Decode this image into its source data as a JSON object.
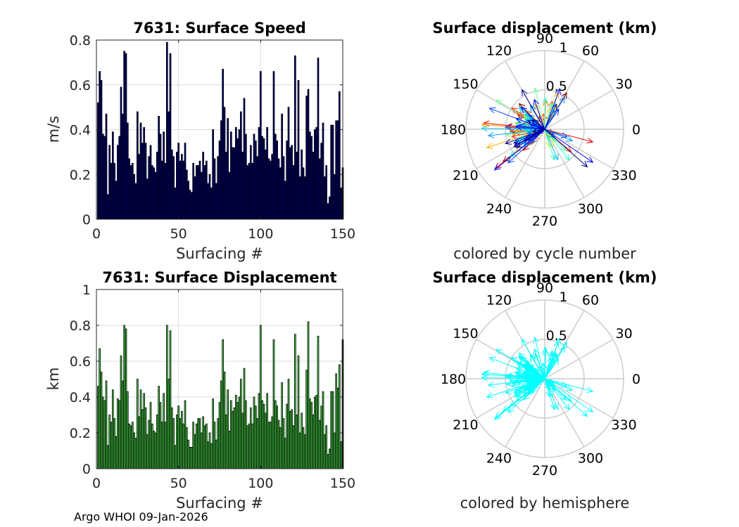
{
  "footer": "Argo WHOI 09-Jan-2026",
  "colors": {
    "speed_bar": "#00007f",
    "disp_bar": "#4cdb4c",
    "hemisphere_arrow": "#00ffff",
    "grid": "#dcdcdc",
    "polar_grid": "#cccccc"
  },
  "chart_data": [
    {
      "id": "speed",
      "type": "bar",
      "title": "7631: Surface Speed",
      "xlabel": "Surfacing #",
      "ylabel": "m/s",
      "xlim": [
        0,
        150
      ],
      "ylim": [
        0,
        0.8
      ],
      "xticks": [
        0,
        50,
        100,
        150
      ],
      "yticks": [
        0,
        0.2,
        0.4,
        0.6,
        0.8
      ],
      "ytick_labels": [
        "0",
        "0.2",
        "0.4",
        "0.6",
        "0.8"
      ],
      "values": [
        0.52,
        0.66,
        0.62,
        0.38,
        0.37,
        0.47,
        0.11,
        0.33,
        0.25,
        0.39,
        0.25,
        0.17,
        0.33,
        0.37,
        0.59,
        0.47,
        0.75,
        0.74,
        0.43,
        0.27,
        0.24,
        0.25,
        0.2,
        0.16,
        0.48,
        0.29,
        0.43,
        0.34,
        0.41,
        0.34,
        0.18,
        0.28,
        0.33,
        0.24,
        0.23,
        0.21,
        0.3,
        0.46,
        0.38,
        0.26,
        0.39,
        0.25,
        0.79,
        0.48,
        0.74,
        0.31,
        0.28,
        0.14,
        0.3,
        0.34,
        0.26,
        0.29,
        0.26,
        0.34,
        0.22,
        0.17,
        0.13,
        0.12,
        0.25,
        0.19,
        0.24,
        0.24,
        0.26,
        0.21,
        0.3,
        0.24,
        0.26,
        0.16,
        0.2,
        0.14,
        0.4,
        0.27,
        0.16,
        0.28,
        0.35,
        0.44,
        0.67,
        0.5,
        0.3,
        0.45,
        0.21,
        0.39,
        0.32,
        0.32,
        0.41,
        0.36,
        0.4,
        0.48,
        0.3,
        0.54,
        0.38,
        0.24,
        0.25,
        0.33,
        0.25,
        0.38,
        0.35,
        0.28,
        0.41,
        0.66,
        0.37,
        0.36,
        0.31,
        0.41,
        0.27,
        0.26,
        0.29,
        0.66,
        0.38,
        0.35,
        0.27,
        0.23,
        0.47,
        0.28,
        0.17,
        0.35,
        0.5,
        0.32,
        0.33,
        0.24,
        0.73,
        0.3,
        0.62,
        0.19,
        0.31,
        0.23,
        0.19,
        0.55,
        0.58,
        0.39,
        0.37,
        0.3,
        0.4,
        0.41,
        0.72,
        0.27,
        0.34,
        0.43,
        0.19,
        0.24,
        0.07,
        0.1,
        0.42,
        0.42,
        0.2,
        0.44,
        0.44,
        0.57,
        0.14,
        0.23
      ]
    },
    {
      "id": "displacement",
      "type": "bar",
      "title": "7631: Surface Displacement",
      "xlabel": "Surfacing #",
      "ylabel": "km",
      "xlim": [
        0,
        150
      ],
      "ylim": [
        0,
        1
      ],
      "xticks": [
        0,
        50,
        100,
        150
      ],
      "yticks": [
        0,
        0.2,
        0.4,
        0.6,
        0.8,
        1
      ],
      "ytick_labels": [
        "0",
        "0.2",
        "0.4",
        "0.6",
        "0.8",
        "1"
      ],
      "values": [
        0.46,
        0.67,
        0.54,
        0.4,
        0.38,
        0.49,
        0.13,
        0.3,
        0.26,
        0.44,
        0.28,
        0.18,
        0.39,
        0.38,
        0.63,
        0.49,
        0.8,
        0.78,
        0.43,
        0.25,
        0.24,
        0.26,
        0.2,
        0.17,
        0.5,
        0.29,
        0.44,
        0.33,
        0.42,
        0.34,
        0.19,
        0.27,
        0.37,
        0.25,
        0.21,
        0.2,
        0.3,
        0.46,
        0.37,
        0.26,
        0.42,
        0.26,
        0.8,
        0.5,
        0.77,
        0.34,
        0.28,
        0.13,
        0.3,
        0.35,
        0.28,
        0.32,
        0.25,
        0.38,
        0.23,
        0.16,
        0.12,
        0.12,
        0.26,
        0.19,
        0.25,
        0.28,
        0.28,
        0.2,
        0.29,
        0.24,
        0.25,
        0.15,
        0.2,
        0.14,
        0.39,
        0.26,
        0.16,
        0.28,
        0.37,
        0.49,
        0.72,
        0.54,
        0.3,
        0.44,
        0.21,
        0.38,
        0.32,
        0.34,
        0.41,
        0.37,
        0.4,
        0.5,
        0.31,
        0.56,
        0.38,
        0.24,
        0.25,
        0.34,
        0.25,
        0.4,
        0.35,
        0.28,
        0.42,
        0.8,
        0.38,
        0.36,
        0.31,
        0.42,
        0.26,
        0.26,
        0.29,
        0.72,
        0.38,
        0.35,
        0.27,
        0.23,
        0.48,
        0.28,
        0.17,
        0.36,
        0.5,
        0.32,
        0.33,
        0.24,
        0.75,
        0.3,
        0.63,
        0.2,
        0.31,
        0.23,
        0.19,
        0.55,
        0.82,
        0.39,
        0.37,
        0.3,
        0.4,
        0.41,
        0.74,
        0.27,
        0.35,
        0.43,
        0.19,
        0.24,
        0.08,
        0.11,
        0.43,
        0.43,
        0.2,
        0.53,
        0.45,
        0.58,
        0.15,
        0.72
      ]
    },
    {
      "id": "polar-cycle",
      "type": "polar",
      "title": "Surface displacement (km)",
      "caption": "colored by cycle number",
      "rmax": 1,
      "angle_ticks": [
        0,
        30,
        60,
        90,
        120,
        150,
        180,
        210,
        240,
        270,
        300,
        330
      ],
      "radial_labels": [
        "0.5",
        "1"
      ],
      "color_mode": "cycle"
    },
    {
      "id": "polar-hemisphere",
      "type": "polar",
      "title": "Surface displacement (km)",
      "caption": "colored by hemisphere",
      "rmax": 1,
      "angle_ticks": [
        0,
        30,
        60,
        90,
        120,
        150,
        180,
        210,
        240,
        270,
        300,
        330
      ],
      "radial_labels": [
        "0.5",
        "1"
      ],
      "color_mode": "hemisphere"
    }
  ]
}
